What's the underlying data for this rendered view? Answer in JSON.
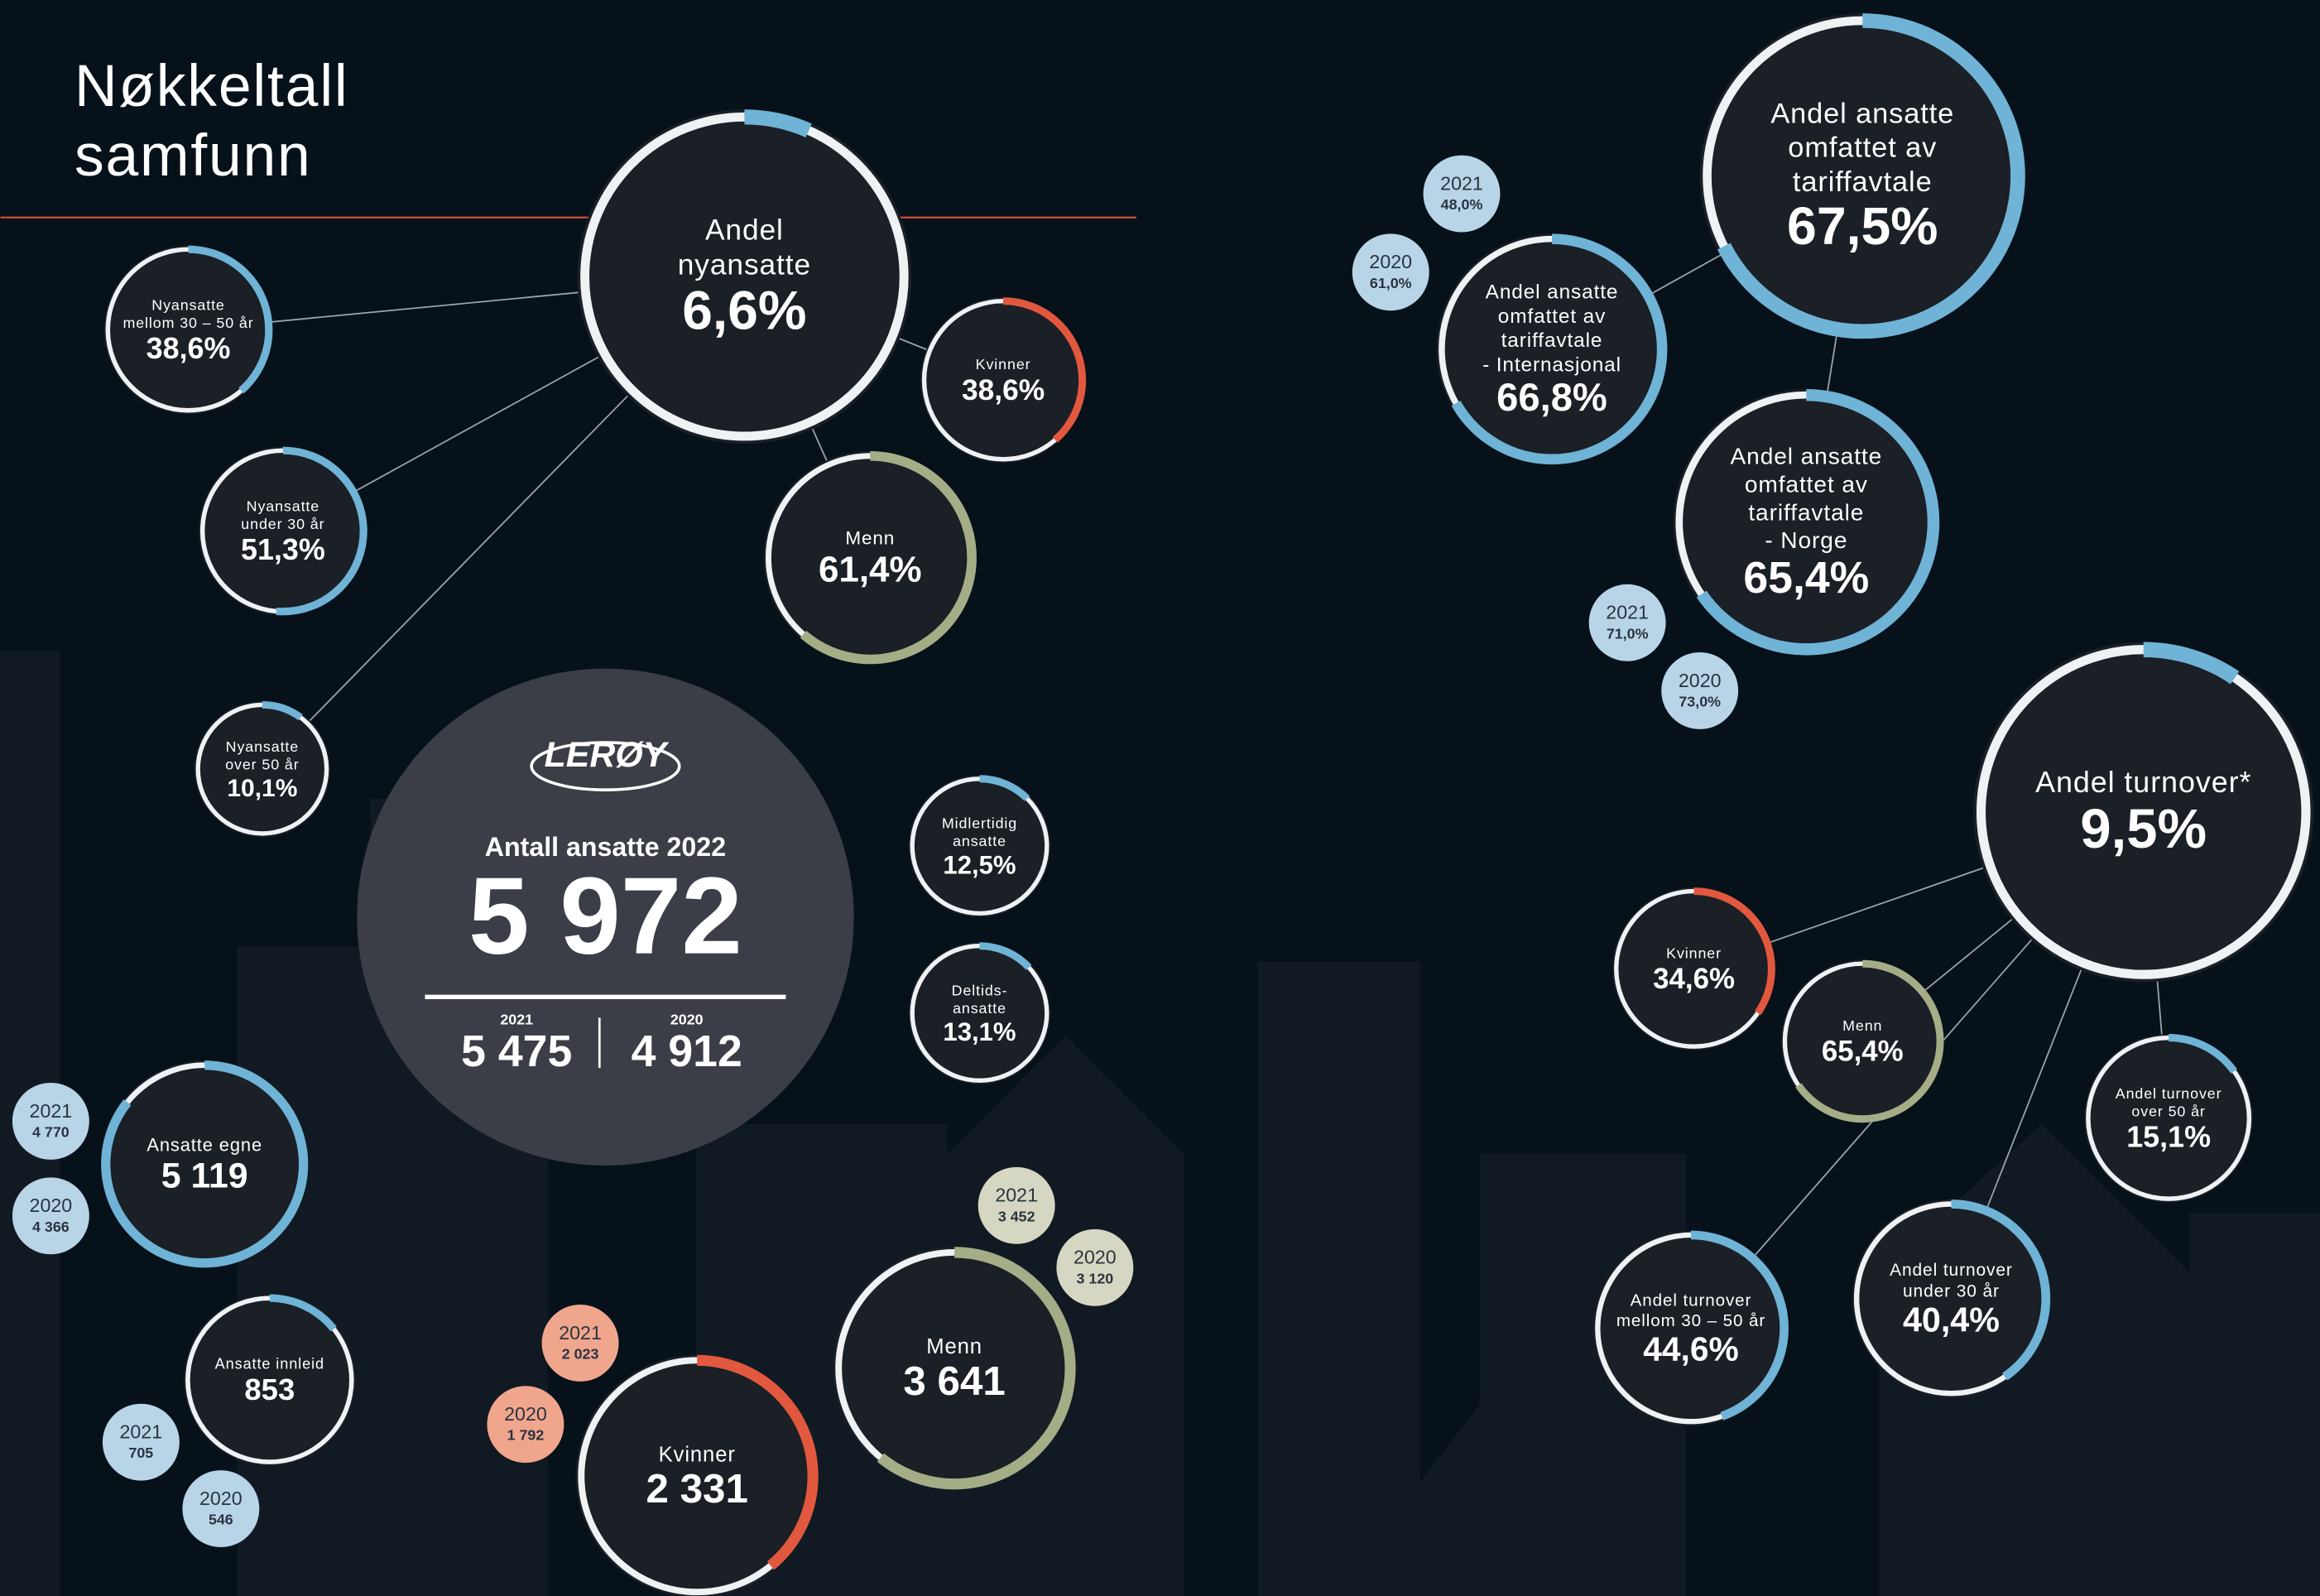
{
  "title": [
    "Nøkkeltall",
    "samfunn"
  ],
  "logo": "LERØY",
  "total": {
    "label": "Antall ansatte 2022",
    "value": 5972,
    "value_label": "5 972",
    "history": [
      {
        "year": "2021",
        "value": "5 475"
      },
      {
        "year": "2020",
        "value": "4 912"
      }
    ]
  },
  "rates": [
    {
      "label": [
        "Andel",
        "nyansatte"
      ],
      "value": 6.6,
      "value_label": "6,6%"
    },
    {
      "label": [
        "Nyansatte",
        "mellom 30 – 50 år"
      ],
      "value": 38.6,
      "value_label": "38,6%"
    },
    {
      "label": [
        "Nyansatte",
        "under 30 år"
      ],
      "value": 51.3,
      "value_label": "51,3%"
    },
    {
      "label": [
        "Nyansatte",
        "over 50 år"
      ],
      "value": 10.1,
      "value_label": "10,1%"
    },
    {
      "label": [
        "Kvinner"
      ],
      "value": 38.6,
      "value_label": "38,6%"
    },
    {
      "label": [
        "Menn"
      ],
      "value": 61.4,
      "value_label": "61,4%"
    },
    {
      "label": [
        "Midlertidig",
        "ansatte"
      ],
      "value": 12.5,
      "value_label": "12,5%"
    },
    {
      "label": [
        "Deltids-",
        "ansatte"
      ],
      "value": 13.1,
      "value_label": "13,1%"
    },
    {
      "label": [
        "Andel ansatte",
        "omfattet av",
        "tariffavtale"
      ],
      "value": 67.5,
      "value_label": "67,5%"
    },
    {
      "label": [
        "Andel ansatte",
        "omfattet av",
        "tariffavtale",
        "- Internasjonal"
      ],
      "value": 66.8,
      "value_label": "66,8%",
      "history": [
        {
          "year": "2021",
          "value": "48,0%"
        },
        {
          "year": "2020",
          "value": "61,0%"
        }
      ]
    },
    {
      "label": [
        "Andel ansatte",
        "omfattet av",
        "tariffavtale",
        "- Norge"
      ],
      "value": 65.4,
      "value_label": "65,4%",
      "history": [
        {
          "year": "2021",
          "value": "71,0%"
        },
        {
          "year": "2020",
          "value": "73,0%"
        }
      ]
    },
    {
      "label": [
        "Andel turnover*"
      ],
      "value": 9.5,
      "value_label": "9,5%"
    },
    {
      "label": [
        "Kvinner"
      ],
      "value": 34.6,
      "value_label": "34,6%"
    },
    {
      "label": [
        "Menn"
      ],
      "value": 65.4,
      "value_label": "65,4%"
    },
    {
      "label": [
        "Andel turnover",
        "over 50 år"
      ],
      "value": 15.1,
      "value_label": "15,1%"
    },
    {
      "label": [
        "Andel turnover",
        "mellom 30 – 50 år"
      ],
      "value": 44.6,
      "value_label": "44,6%"
    },
    {
      "label": [
        "Andel turnover",
        "under 30 år"
      ],
      "value": 40.4,
      "value_label": "40,4%"
    }
  ],
  "headcounts": [
    {
      "label": [
        "Ansatte egne"
      ],
      "value": 5119,
      "value_label": "5 119",
      "history": [
        {
          "year": "2021",
          "value": "4 770"
        },
        {
          "year": "2020",
          "value": "4 366"
        }
      ]
    },
    {
      "label": [
        "Ansatte innleid"
      ],
      "value": 853,
      "value_label": "853",
      "history": [
        {
          "year": "2021",
          "value": "705"
        },
        {
          "year": "2020",
          "value": "546"
        }
      ]
    },
    {
      "label": [
        "Kvinner"
      ],
      "value": 2331,
      "value_label": "2 331",
      "history": [
        {
          "year": "2021",
          "value": "2 023"
        },
        {
          "year": "2020",
          "value": "1 792"
        }
      ]
    },
    {
      "label": [
        "Menn"
      ],
      "value": 3641,
      "value_label": "3 641",
      "history": [
        {
          "year": "2021",
          "value": "3 452"
        },
        {
          "year": "2020",
          "value": "3 120"
        }
      ]
    }
  ]
}
